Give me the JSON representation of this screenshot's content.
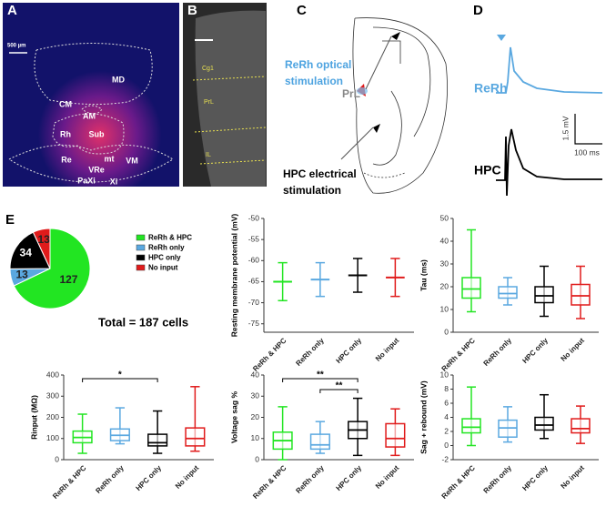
{
  "panels": {
    "A": {
      "label": "A",
      "scale": "500 µm",
      "regions": [
        "MD",
        "CM",
        "AM",
        "Rh",
        "Sub",
        "Re",
        "VRe",
        "mt",
        "VM",
        "PaXi",
        "Xi"
      ]
    },
    "B": {
      "label": "B",
      "regions": [
        "Cg1",
        "PrL",
        "IL"
      ]
    },
    "C": {
      "label": "C",
      "optical": [
        "ReRh optical",
        "stimulation"
      ],
      "site": "PrL",
      "electrical": [
        "HPC electrical",
        "stimulation"
      ]
    },
    "D": {
      "label": "D",
      "trace1": "ReRh",
      "trace2": "HPC",
      "scale_v": "1.5 mV",
      "scale_t": "100 ms"
    },
    "E": {
      "label": "E"
    }
  },
  "chart_data": [
    {
      "type": "pie",
      "categories": [
        "ReRh & HPC",
        "ReRh only",
        "HPC only",
        "No input"
      ],
      "values": [
        127,
        13,
        34,
        13
      ],
      "colors": [
        "#22e522",
        "#5aa8e0",
        "#000000",
        "#e01b1b"
      ],
      "annotation": "Total = 187 cells"
    },
    {
      "type": "errorbar",
      "ylabel": "Resting membrane potential (mV)",
      "categories": [
        "ReRh & HPC",
        "ReRh only",
        "HPC only",
        "No input"
      ],
      "colors": [
        "#22e522",
        "#5aa8e0",
        "#000000",
        "#e01b1b"
      ],
      "values": [
        -65,
        -64.5,
        -63.5,
        -64
      ],
      "errors": [
        4.5,
        4,
        4,
        4.5
      ],
      "ylim": [
        -77,
        -50
      ],
      "yticks": [
        -75,
        -70,
        -65,
        -60,
        -55,
        -50
      ]
    },
    {
      "type": "box",
      "ylabel": "Tau (ms)",
      "categories": [
        "ReRh & HPC",
        "ReRh only",
        "HPC only",
        "No input"
      ],
      "colors": [
        "#22e522",
        "#5aa8e0",
        "#000000",
        "#e01b1b"
      ],
      "boxes": [
        {
          "min": 9,
          "q1": 15,
          "median": 19,
          "q3": 24,
          "max": 45
        },
        {
          "min": 12,
          "q1": 15,
          "median": 17,
          "q3": 20,
          "max": 24
        },
        {
          "min": 7,
          "q1": 13,
          "median": 16,
          "q3": 20,
          "max": 29
        },
        {
          "min": 6,
          "q1": 12,
          "median": 16,
          "q3": 21,
          "max": 29
        }
      ],
      "ylim": [
        0,
        50
      ],
      "yticks": [
        0,
        10,
        20,
        30,
        40,
        50
      ]
    },
    {
      "type": "box",
      "ylabel": "Rinput (MΩ)",
      "categories": [
        "ReRh & HPC",
        "ReRh only",
        "HPC only",
        "No input"
      ],
      "colors": [
        "#22e522",
        "#5aa8e0",
        "#000000",
        "#e01b1b"
      ],
      "boxes": [
        {
          "min": 30,
          "q1": 80,
          "median": 105,
          "q3": 135,
          "max": 215
        },
        {
          "min": 75,
          "q1": 90,
          "median": 115,
          "q3": 145,
          "max": 245
        },
        {
          "min": 30,
          "q1": 65,
          "median": 80,
          "q3": 120,
          "max": 230
        },
        {
          "min": 40,
          "q1": 65,
          "median": 100,
          "q3": 150,
          "max": 345
        }
      ],
      "ylim": [
        0,
        400
      ],
      "yticks": [
        0,
        100,
        200,
        300,
        400
      ],
      "annotations": [
        {
          "text": "*",
          "from": "ReRh & HPC",
          "to": "HPC only"
        }
      ]
    },
    {
      "type": "box",
      "ylabel": "Voltage sag %",
      "categories": [
        "ReRh & HPC",
        "ReRh only",
        "HPC only",
        "No input"
      ],
      "colors": [
        "#22e522",
        "#5aa8e0",
        "#000000",
        "#e01b1b"
      ],
      "boxes": [
        {
          "min": 0,
          "q1": 5,
          "median": 9,
          "q3": 13,
          "max": 25
        },
        {
          "min": 3,
          "q1": 5,
          "median": 7,
          "q3": 12,
          "max": 18
        },
        {
          "min": 2,
          "q1": 10,
          "median": 14,
          "q3": 18,
          "max": 29
        },
        {
          "min": 2,
          "q1": 6,
          "median": 10,
          "q3": 17,
          "max": 24
        }
      ],
      "ylim": [
        0,
        40
      ],
      "yticks": [
        0,
        10,
        20,
        30,
        40
      ],
      "annotations": [
        {
          "text": "**",
          "from": "ReRh & HPC",
          "to": "HPC only"
        },
        {
          "text": "**",
          "from": "ReRh only",
          "to": "HPC only"
        }
      ]
    },
    {
      "type": "box",
      "ylabel": "Sag + rebound (mV)",
      "categories": [
        "ReRh & HPC",
        "ReRh only",
        "HPC only",
        "No input"
      ],
      "colors": [
        "#22e522",
        "#5aa8e0",
        "#000000",
        "#e01b1b"
      ],
      "boxes": [
        {
          "min": 0,
          "q1": 1.8,
          "median": 2.6,
          "q3": 3.8,
          "max": 8.3
        },
        {
          "min": 0.5,
          "q1": 1.2,
          "median": 2.5,
          "q3": 3.6,
          "max": 5.5
        },
        {
          "min": 1,
          "q1": 2.2,
          "median": 2.9,
          "q3": 4,
          "max": 7.2
        },
        {
          "min": 0.3,
          "q1": 1.8,
          "median": 2.4,
          "q3": 3.8,
          "max": 5.6
        }
      ],
      "ylim": [
        -2,
        10
      ],
      "yticks": [
        -2,
        0,
        2,
        4,
        6,
        8,
        10
      ]
    }
  ]
}
